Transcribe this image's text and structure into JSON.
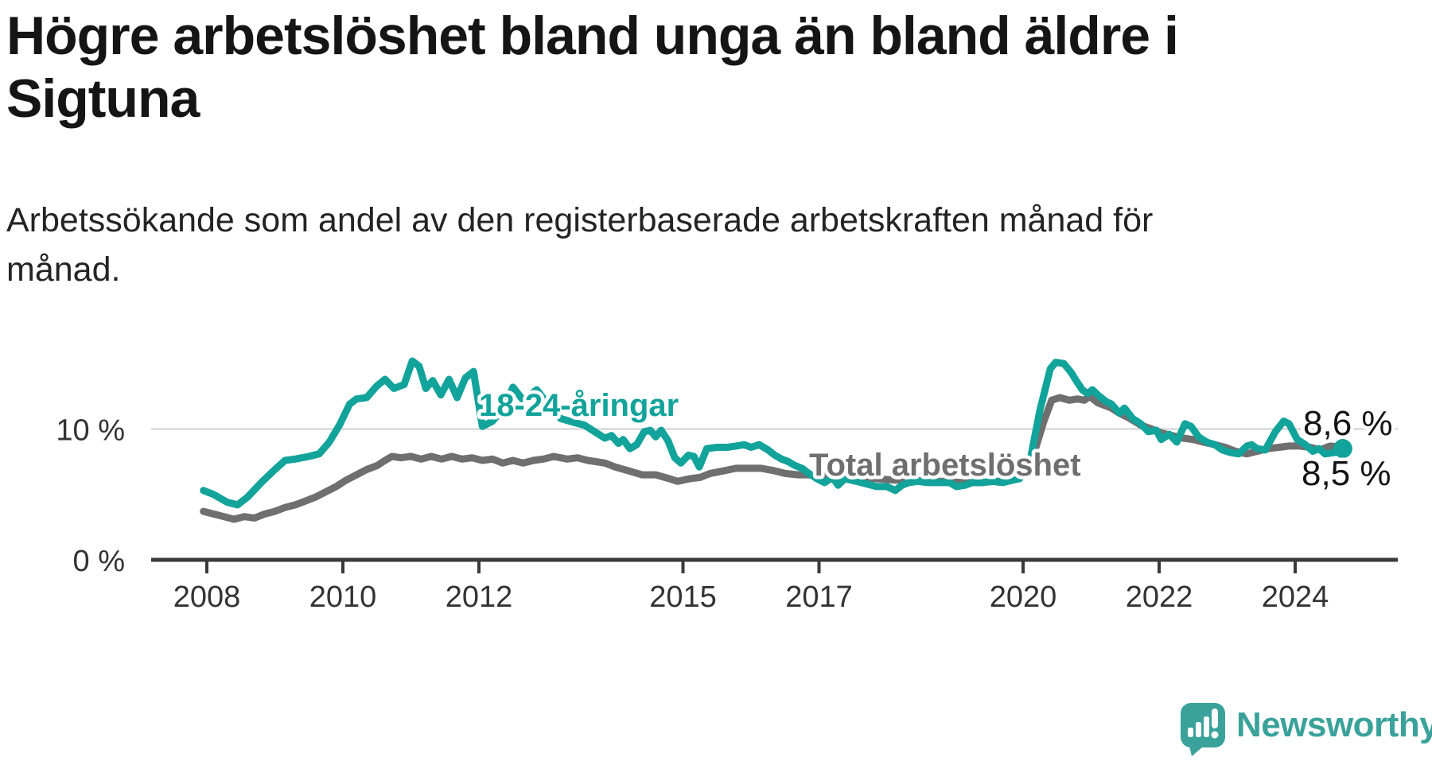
{
  "header": {
    "title_lines": [
      "Högre arbetslöshet bland unga än bland äldre i",
      "Sigtuna"
    ],
    "subtitle_lines": [
      "Arbetssökande som andel av den registerbaserade arbetskraften månad för",
      "månad."
    ]
  },
  "chart_data": {
    "type": "line",
    "title": "Högre arbetslöshet bland unga än bland äldre i Sigtuna",
    "subtitle": "Arbetssökande som andel av den registerbaserade arbetskraften månad för månad.",
    "unit": "%",
    "x_axis": {
      "range": [
        2007.9,
        2024.8
      ],
      "ticks": [
        {
          "value": 2008,
          "label": "2008"
        },
        {
          "value": 2010,
          "label": "2010"
        },
        {
          "value": 2012,
          "label": "2012"
        },
        {
          "value": 2015,
          "label": "2015"
        },
        {
          "value": 2017,
          "label": "2017"
        },
        {
          "value": 2020,
          "label": "2020"
        },
        {
          "value": 2022,
          "label": "2022"
        },
        {
          "value": 2024,
          "label": "2024"
        }
      ]
    },
    "y_axis": {
      "range": [
        0,
        16
      ],
      "ticks": [
        {
          "value": 0,
          "label": "0 %",
          "grid": false
        },
        {
          "value": 10,
          "label": "10 %",
          "grid": true
        }
      ]
    },
    "grid": "horizontal-at-10-only",
    "legend_position": "inline-series-labels",
    "series": [
      {
        "id": "total",
        "name": "Total arbetslöshet",
        "color": "#6F6F6F",
        "end_label": "8,6 %",
        "end_value": 8.6,
        "points": [
          [
            2007.95,
            3.7
          ],
          [
            2008.1,
            3.5
          ],
          [
            2008.25,
            3.3
          ],
          [
            2008.4,
            3.1
          ],
          [
            2008.55,
            3.3
          ],
          [
            2008.7,
            3.2
          ],
          [
            2008.85,
            3.5
          ],
          [
            2009.0,
            3.7
          ],
          [
            2009.15,
            4.0
          ],
          [
            2009.3,
            4.2
          ],
          [
            2009.45,
            4.5
          ],
          [
            2009.6,
            4.8
          ],
          [
            2009.75,
            5.2
          ],
          [
            2009.9,
            5.6
          ],
          [
            2010.05,
            6.1
          ],
          [
            2010.2,
            6.5
          ],
          [
            2010.35,
            6.9
          ],
          [
            2010.5,
            7.2
          ],
          [
            2010.62,
            7.6
          ],
          [
            2010.72,
            7.9
          ],
          [
            2010.85,
            7.8
          ],
          [
            2011.0,
            7.9
          ],
          [
            2011.15,
            7.7
          ],
          [
            2011.3,
            7.9
          ],
          [
            2011.45,
            7.7
          ],
          [
            2011.6,
            7.9
          ],
          [
            2011.75,
            7.7
          ],
          [
            2011.9,
            7.8
          ],
          [
            2012.05,
            7.6
          ],
          [
            2012.2,
            7.7
          ],
          [
            2012.35,
            7.4
          ],
          [
            2012.5,
            7.6
          ],
          [
            2012.65,
            7.4
          ],
          [
            2012.8,
            7.6
          ],
          [
            2012.95,
            7.7
          ],
          [
            2013.1,
            7.9
          ],
          [
            2013.3,
            7.7
          ],
          [
            2013.45,
            7.8
          ],
          [
            2013.6,
            7.6
          ],
          [
            2013.85,
            7.4
          ],
          [
            2014.0,
            7.1
          ],
          [
            2014.2,
            6.8
          ],
          [
            2014.4,
            6.5
          ],
          [
            2014.6,
            6.5
          ],
          [
            2014.8,
            6.2
          ],
          [
            2014.92,
            6.0
          ],
          [
            2015.1,
            6.2
          ],
          [
            2015.25,
            6.3
          ],
          [
            2015.4,
            6.6
          ],
          [
            2015.6,
            6.8
          ],
          [
            2015.78,
            7.0
          ],
          [
            2015.95,
            7.0
          ],
          [
            2016.15,
            7.0
          ],
          [
            2016.35,
            6.8
          ],
          [
            2016.5,
            6.6
          ],
          [
            2016.7,
            6.5
          ],
          [
            2016.85,
            6.5
          ],
          [
            2017.1,
            6.4
          ],
          [
            2017.35,
            6.3
          ],
          [
            2017.6,
            6.3
          ],
          [
            2017.85,
            6.2
          ],
          [
            2018.1,
            6.1
          ],
          [
            2018.35,
            6.1
          ],
          [
            2018.6,
            6.0
          ],
          [
            2018.85,
            6.0
          ],
          [
            2019.1,
            5.9
          ],
          [
            2019.35,
            5.9
          ],
          [
            2019.6,
            6.0
          ],
          [
            2019.8,
            6.1
          ],
          [
            2019.95,
            6.3
          ],
          [
            2020.1,
            7.2
          ],
          [
            2020.2,
            8.8
          ],
          [
            2020.3,
            10.5
          ],
          [
            2020.42,
            12.2
          ],
          [
            2020.54,
            12.4
          ],
          [
            2020.68,
            12.2
          ],
          [
            2020.8,
            12.3
          ],
          [
            2020.9,
            12.2
          ],
          [
            2020.98,
            12.5
          ],
          [
            2021.1,
            12.0
          ],
          [
            2021.3,
            11.6
          ],
          [
            2021.42,
            11.2
          ],
          [
            2021.57,
            10.8
          ],
          [
            2021.73,
            10.3
          ],
          [
            2021.89,
            10.0
          ],
          [
            2022.03,
            9.7
          ],
          [
            2022.19,
            9.5
          ],
          [
            2022.35,
            9.3
          ],
          [
            2022.5,
            9.2
          ],
          [
            2022.65,
            9.0
          ],
          [
            2022.82,
            8.8
          ],
          [
            2022.97,
            8.6
          ],
          [
            2023.12,
            8.3
          ],
          [
            2023.29,
            8.1
          ],
          [
            2023.44,
            8.3
          ],
          [
            2023.6,
            8.5
          ],
          [
            2023.76,
            8.6
          ],
          [
            2023.91,
            8.7
          ],
          [
            2024.06,
            8.7
          ],
          [
            2024.22,
            8.6
          ],
          [
            2024.37,
            8.4
          ],
          [
            2024.51,
            8.7
          ],
          [
            2024.7,
            8.6
          ]
        ]
      },
      {
        "id": "youth",
        "name": "18-24-åringar",
        "color": "#12A39B",
        "end_label": "8,5 %",
        "end_value": 8.5,
        "points": [
          [
            2007.95,
            5.3
          ],
          [
            2008.1,
            5.0
          ],
          [
            2008.3,
            4.4
          ],
          [
            2008.45,
            4.2
          ],
          [
            2008.6,
            4.8
          ],
          [
            2008.8,
            5.9
          ],
          [
            2009.0,
            6.9
          ],
          [
            2009.15,
            7.6
          ],
          [
            2009.3,
            7.7
          ],
          [
            2009.5,
            7.9
          ],
          [
            2009.65,
            8.1
          ],
          [
            2009.8,
            9.0
          ],
          [
            2009.95,
            10.3
          ],
          [
            2010.1,
            11.9
          ],
          [
            2010.2,
            12.3
          ],
          [
            2010.35,
            12.4
          ],
          [
            2010.5,
            13.3
          ],
          [
            2010.62,
            13.8
          ],
          [
            2010.75,
            13.1
          ],
          [
            2010.9,
            13.4
          ],
          [
            2011.02,
            15.2
          ],
          [
            2011.12,
            14.8
          ],
          [
            2011.22,
            13.1
          ],
          [
            2011.32,
            13.7
          ],
          [
            2011.44,
            12.6
          ],
          [
            2011.56,
            13.8
          ],
          [
            2011.68,
            12.4
          ],
          [
            2011.8,
            13.9
          ],
          [
            2011.92,
            14.4
          ],
          [
            2012.05,
            10.2
          ],
          [
            2012.2,
            10.6
          ],
          [
            2012.35,
            11.5
          ],
          [
            2012.5,
            13.2
          ],
          [
            2012.65,
            12.2
          ],
          [
            2012.85,
            13.0
          ],
          [
            2013.0,
            12.0
          ],
          [
            2013.2,
            10.8
          ],
          [
            2013.4,
            10.5
          ],
          [
            2013.55,
            10.3
          ],
          [
            2013.7,
            9.8
          ],
          [
            2013.85,
            9.3
          ],
          [
            2013.95,
            9.5
          ],
          [
            2014.05,
            8.9
          ],
          [
            2014.12,
            9.2
          ],
          [
            2014.22,
            8.5
          ],
          [
            2014.32,
            8.8
          ],
          [
            2014.43,
            9.8
          ],
          [
            2014.52,
            9.9
          ],
          [
            2014.6,
            9.4
          ],
          [
            2014.68,
            9.9
          ],
          [
            2014.78,
            9.1
          ],
          [
            2014.88,
            7.8
          ],
          [
            2014.97,
            7.4
          ],
          [
            2015.08,
            8.0
          ],
          [
            2015.16,
            7.9
          ],
          [
            2015.24,
            7.1
          ],
          [
            2015.35,
            8.5
          ],
          [
            2015.5,
            8.6
          ],
          [
            2015.65,
            8.6
          ],
          [
            2015.78,
            8.7
          ],
          [
            2015.9,
            8.8
          ],
          [
            2016.0,
            8.6
          ],
          [
            2016.12,
            8.8
          ],
          [
            2016.25,
            8.4
          ],
          [
            2016.35,
            8.0
          ],
          [
            2016.45,
            7.7
          ],
          [
            2016.55,
            7.5
          ],
          [
            2016.65,
            7.2
          ],
          [
            2016.75,
            7.0
          ],
          [
            2016.85,
            6.6
          ],
          [
            2016.97,
            6.2
          ],
          [
            2017.08,
            5.9
          ],
          [
            2017.2,
            6.3
          ],
          [
            2017.28,
            5.7
          ],
          [
            2017.38,
            6.2
          ],
          [
            2017.55,
            6.0
          ],
          [
            2017.7,
            5.8
          ],
          [
            2017.85,
            5.6
          ],
          [
            2018.0,
            5.6
          ],
          [
            2018.12,
            5.3
          ],
          [
            2018.22,
            5.7
          ],
          [
            2018.32,
            5.9
          ],
          [
            2018.45,
            6.0
          ],
          [
            2018.6,
            5.9
          ],
          [
            2018.75,
            5.9
          ],
          [
            2018.92,
            5.9
          ],
          [
            2019.02,
            5.6
          ],
          [
            2019.15,
            5.7
          ],
          [
            2019.25,
            5.9
          ],
          [
            2019.4,
            5.9
          ],
          [
            2019.55,
            6.0
          ],
          [
            2019.7,
            5.9
          ],
          [
            2019.85,
            6.1
          ],
          [
            2019.95,
            6.2
          ],
          [
            2020.1,
            7.5
          ],
          [
            2020.25,
            11.5
          ],
          [
            2020.4,
            14.6
          ],
          [
            2020.48,
            15.1
          ],
          [
            2020.6,
            15.0
          ],
          [
            2020.71,
            14.3
          ],
          [
            2020.78,
            13.7
          ],
          [
            2020.87,
            13.0
          ],
          [
            2020.95,
            12.7
          ],
          [
            2021.02,
            13.0
          ],
          [
            2021.1,
            12.6
          ],
          [
            2021.22,
            12.1
          ],
          [
            2021.3,
            11.9
          ],
          [
            2021.42,
            11.2
          ],
          [
            2021.49,
            11.6
          ],
          [
            2021.61,
            10.8
          ],
          [
            2021.73,
            10.4
          ],
          [
            2021.84,
            9.8
          ],
          [
            2021.96,
            9.9
          ],
          [
            2022.03,
            9.2
          ],
          [
            2022.15,
            9.6
          ],
          [
            2022.26,
            9.0
          ],
          [
            2022.38,
            10.4
          ],
          [
            2022.47,
            10.2
          ],
          [
            2022.58,
            9.4
          ],
          [
            2022.7,
            9.0
          ],
          [
            2022.82,
            8.8
          ],
          [
            2022.93,
            8.4
          ],
          [
            2023.05,
            8.2
          ],
          [
            2023.17,
            8.1
          ],
          [
            2023.29,
            8.7
          ],
          [
            2023.36,
            8.8
          ],
          [
            2023.44,
            8.5
          ],
          [
            2023.56,
            8.4
          ],
          [
            2023.71,
            9.8
          ],
          [
            2023.83,
            10.6
          ],
          [
            2023.91,
            10.4
          ],
          [
            2024.03,
            9.2
          ],
          [
            2024.15,
            8.8
          ],
          [
            2024.26,
            8.3
          ],
          [
            2024.35,
            8.5
          ],
          [
            2024.44,
            8.1
          ],
          [
            2024.58,
            8.2
          ],
          [
            2024.7,
            8.5
          ]
        ]
      }
    ]
  },
  "footer": {
    "brand": "Newsworthy"
  },
  "colors": {
    "accent_teal": "#12A39B",
    "series_gray": "#6F6F6F",
    "logo_teal": "#3AA29A",
    "grid": "#D9D9D9",
    "axis": "#333333",
    "title_text": "#151515",
    "value_text": "#141414"
  }
}
